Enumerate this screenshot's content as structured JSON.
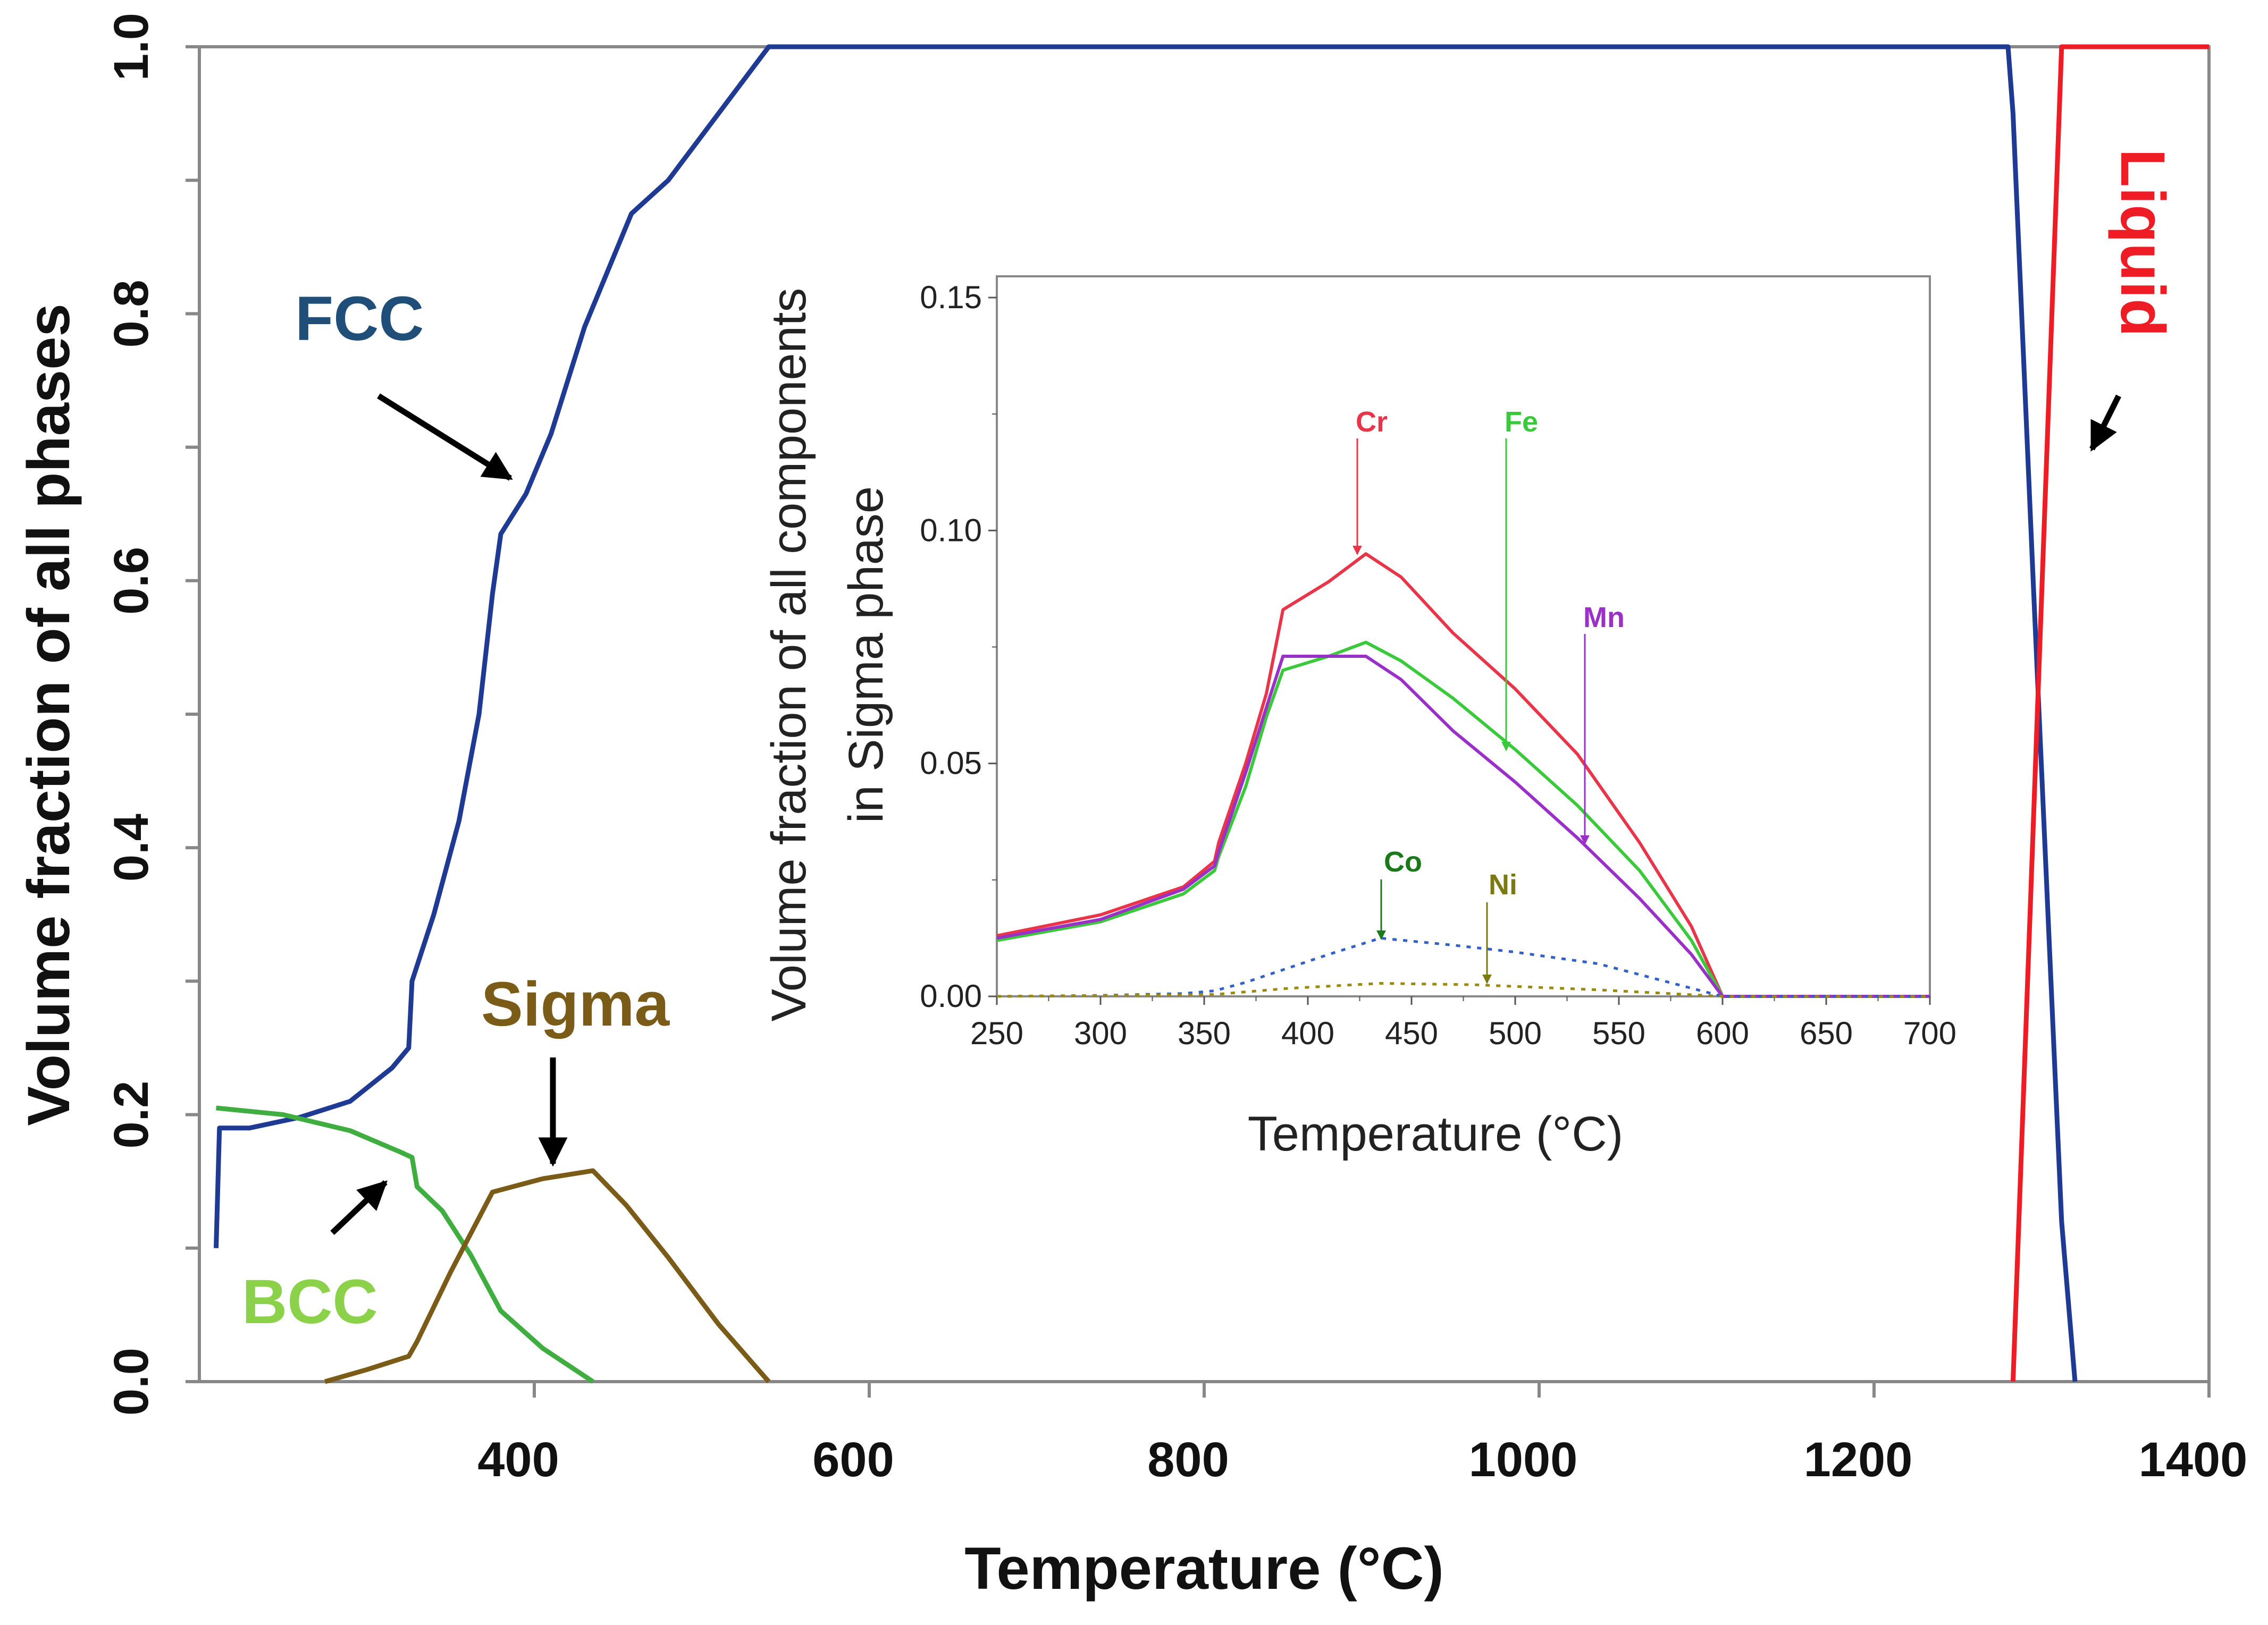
{
  "chart_data": [
    {
      "type": "line",
      "xlabel": "Temperature (°C)",
      "ylabel": "Volume fraction of all phases",
      "xlim": [
        200,
        1400
      ],
      "ylim": [
        0,
        1
      ],
      "x_ticks": [
        "400",
        "600",
        "800",
        "1000",
        "1200",
        "1400"
      ],
      "y_ticks": [
        "0.0",
        "0.2",
        "0.4",
        "0.6",
        "0.8",
        "1.0"
      ],
      "series": [
        {
          "name": "FCC",
          "color": "#1f3a93",
          "points": [
            [
              210,
              0.1
            ],
            [
              212,
              0.19
            ],
            [
              230,
              0.19
            ],
            [
              260,
              0.198
            ],
            [
              290,
              0.21
            ],
            [
              315,
              0.235
            ],
            [
              325,
              0.25
            ],
            [
              327,
              0.3
            ],
            [
              340,
              0.35
            ],
            [
              355,
              0.42
            ],
            [
              367,
              0.5
            ],
            [
              375,
              0.59
            ],
            [
              380,
              0.635
            ],
            [
              395,
              0.665
            ],
            [
              410,
              0.71
            ],
            [
              430,
              0.79
            ],
            [
              458,
              0.875
            ],
            [
              480,
              0.9
            ],
            [
              510,
              0.95
            ],
            [
              540,
              1.0
            ],
            [
              1280,
              1.0
            ],
            [
              1283,
              0.95
            ],
            [
              1295,
              0.6
            ],
            [
              1312,
              0.12
            ],
            [
              1320,
              0.0
            ]
          ]
        },
        {
          "name": "BCC",
          "color": "#3fad3f",
          "points": [
            [
              210,
              0.205
            ],
            [
              250,
              0.2
            ],
            [
              290,
              0.188
            ],
            [
              320,
              0.172
            ],
            [
              327,
              0.168
            ],
            [
              330,
              0.146
            ],
            [
              345,
              0.128
            ],
            [
              362,
              0.095
            ],
            [
              380,
              0.053
            ],
            [
              405,
              0.025
            ],
            [
              435,
              0.0
            ]
          ]
        },
        {
          "name": "Sigma",
          "color": "#7a5b17",
          "points": [
            [
              275,
              0.0
            ],
            [
              300,
              0.009
            ],
            [
              325,
              0.019
            ],
            [
              330,
              0.03
            ],
            [
              350,
              0.082
            ],
            [
              375,
              0.142
            ],
            [
              405,
              0.152
            ],
            [
              435,
              0.158
            ],
            [
              455,
              0.132
            ],
            [
              480,
              0.093
            ],
            [
              510,
              0.043
            ],
            [
              540,
              0.0
            ]
          ]
        },
        {
          "name": "Liquid",
          "color": "#ee1c24",
          "points": [
            [
              1283,
              0.0
            ],
            [
              1312,
              1.0
            ],
            [
              1400,
              1.0
            ]
          ]
        }
      ],
      "annotations": [
        "FCC",
        "BCC",
        "Sigma",
        "Liquid"
      ],
      "inset": {
        "type": "line",
        "xlabel": "Temperature (°C)",
        "ylabel_line1": "Volume fraction of all components",
        "ylabel_line2": "in Sigma phase",
        "xlim": [
          250,
          700
        ],
        "ylim": [
          0,
          0.15
        ],
        "x_ticks": [
          "250",
          "300",
          "350",
          "400",
          "450",
          "500",
          "550",
          "600",
          "650",
          "700"
        ],
        "y_ticks": [
          "0.00",
          "0.05",
          "0.10",
          "0.15"
        ],
        "series": [
          {
            "name": "Cr",
            "color": "#e8354a",
            "style": "solid",
            "points": [
              [
                250,
                0.013
              ],
              [
                300,
                0.0175
              ],
              [
                340,
                0.0235
              ],
              [
                355,
                0.029
              ],
              [
                357,
                0.033
              ],
              [
                370,
                0.05
              ],
              [
                380,
                0.065
              ],
              [
                388,
                0.083
              ],
              [
                410,
                0.089
              ],
              [
                428,
                0.095
              ],
              [
                445,
                0.09
              ],
              [
                470,
                0.078
              ],
              [
                500,
                0.066
              ],
              [
                530,
                0.052
              ],
              [
                560,
                0.033
              ],
              [
                585,
                0.015
              ],
              [
                600,
                0.0
              ],
              [
                700,
                0.0
              ]
            ]
          },
          {
            "name": "Fe",
            "color": "#3ac93a",
            "style": "solid",
            "points": [
              [
                250,
                0.012
              ],
              [
                300,
                0.016
              ],
              [
                340,
                0.022
              ],
              [
                355,
                0.027
              ],
              [
                357,
                0.03
              ],
              [
                370,
                0.045
              ],
              [
                380,
                0.06
              ],
              [
                388,
                0.07
              ],
              [
                410,
                0.073
              ],
              [
                428,
                0.076
              ],
              [
                445,
                0.072
              ],
              [
                470,
                0.064
              ],
              [
                500,
                0.053
              ],
              [
                530,
                0.041
              ],
              [
                560,
                0.027
              ],
              [
                585,
                0.012
              ],
              [
                600,
                0.0
              ],
              [
                700,
                0.0
              ]
            ]
          },
          {
            "name": "Mn",
            "color": "#9b30c8",
            "style": "solid",
            "points": [
              [
                250,
                0.0125
              ],
              [
                300,
                0.0165
              ],
              [
                340,
                0.023
              ],
              [
                355,
                0.028
              ],
              [
                357,
                0.031
              ],
              [
                370,
                0.048
              ],
              [
                380,
                0.062
              ],
              [
                388,
                0.073
              ],
              [
                410,
                0.073
              ],
              [
                428,
                0.073
              ],
              [
                445,
                0.068
              ],
              [
                470,
                0.057
              ],
              [
                500,
                0.046
              ],
              [
                530,
                0.034
              ],
              [
                560,
                0.021
              ],
              [
                585,
                0.009
              ],
              [
                600,
                0.0
              ],
              [
                700,
                0.0
              ]
            ]
          },
          {
            "name": "Co",
            "color": "#3060c8",
            "style": "dotted",
            "points": [
              [
                250,
                0.0
              ],
              [
                300,
                0.0002
              ],
              [
                340,
                0.0006
              ],
              [
                355,
                0.0012
              ],
              [
                370,
                0.003
              ],
              [
                390,
                0.006
              ],
              [
                410,
                0.009
              ],
              [
                435,
                0.0125
              ],
              [
                470,
                0.011
              ],
              [
                500,
                0.0095
              ],
              [
                540,
                0.007
              ],
              [
                570,
                0.0035
              ],
              [
                600,
                0.0
              ],
              [
                700,
                0.0
              ]
            ]
          },
          {
            "name": "Ni",
            "color": "#9a8a10",
            "style": "dotted",
            "points": [
              [
                250,
                0.0
              ],
              [
                355,
                0.0004
              ],
              [
                390,
                0.0017
              ],
              [
                435,
                0.0028
              ],
              [
                480,
                0.0025
              ],
              [
                540,
                0.0014
              ],
              [
                600,
                0.0
              ],
              [
                700,
                0.0
              ]
            ]
          }
        ],
        "annotations": [
          "Cr",
          "Fe",
          "Mn",
          "Co",
          "Ni"
        ]
      }
    }
  ]
}
